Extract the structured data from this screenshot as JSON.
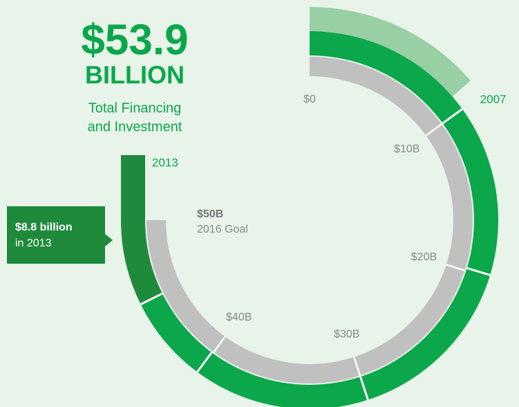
{
  "chart_data": {
    "type": "radial-progress",
    "title": "$53.9",
    "subtitle": "BILLION",
    "caption": [
      "Total Financing",
      "and Investment"
    ],
    "categories": [
      "2007",
      null,
      null,
      null,
      null,
      "2013"
    ],
    "series": [
      {
        "color": "#0ba74a",
        "highlight_color": "#1f8a3c",
        "values": [
          10,
          9.8,
          10.2,
          10.1,
          5,
          8.8
        ]
      }
    ],
    "band_value": 9.1,
    "band_color": "#99cfa5",
    "ylim": [
      0,
      50
    ],
    "yticks": [
      {
        "value": 0,
        "label": "$0"
      },
      {
        "value": 10,
        "label": "$10B"
      },
      {
        "value": 20,
        "label": "$20B"
      },
      {
        "value": 30,
        "label": "$30B"
      },
      {
        "value": 40,
        "label": "$40B"
      },
      {
        "value": 50,
        "label": "$50B"
      }
    ],
    "goal_label": "2016 Goal",
    "goal_color": "#c0c0c0",
    "callout": {
      "title": "$8.8 billion",
      "subtitle": "in 2013"
    }
  }
}
